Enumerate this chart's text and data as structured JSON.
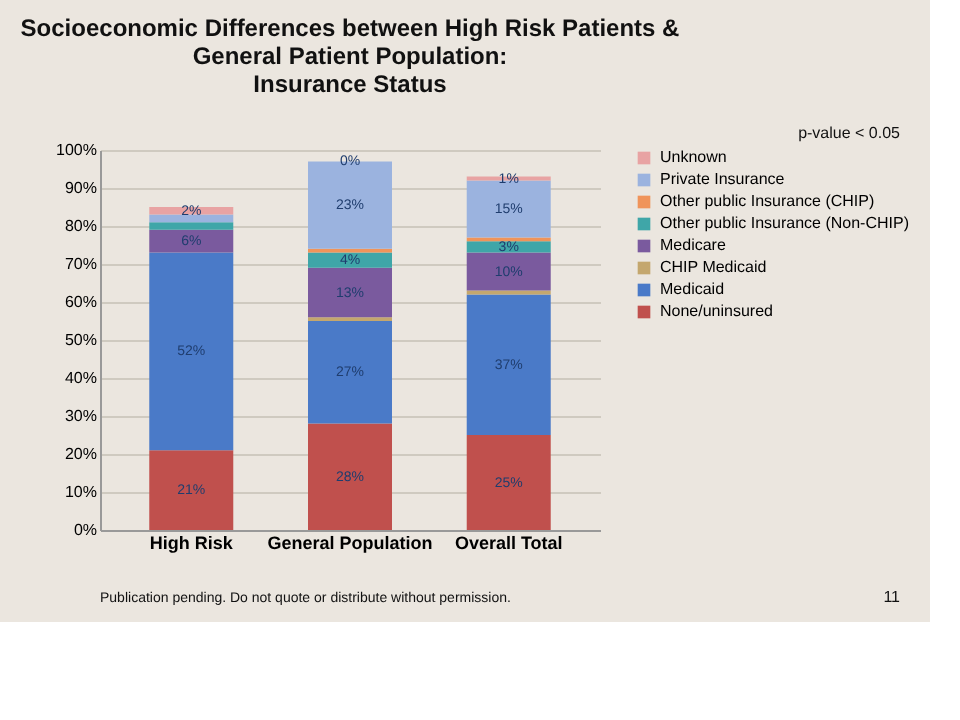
{
  "chart_data": {
    "type": "bar",
    "stacked": true,
    "title": [
      "Socioeconomic Differences between High Risk Patients &",
      "General Patient Population:",
      "Insurance Status"
    ],
    "annotations": [
      "p-value < 0.05",
      "Publication pending. Do not quote or distribute without permission.",
      "11"
    ],
    "categories": [
      "High Risk",
      "General Population",
      "Overall Total"
    ],
    "ylim": [
      0,
      100
    ],
    "yticks": [
      {
        "value": 0,
        "label": "0%"
      },
      {
        "value": 10,
        "label": "10%"
      },
      {
        "value": 20,
        "label": "20%"
      },
      {
        "value": 30,
        "label": "30%"
      },
      {
        "value": 40,
        "label": "40%"
      },
      {
        "value": 50,
        "label": "50%"
      },
      {
        "value": 60,
        "label": "60%"
      },
      {
        "value": 70,
        "label": "70%"
      },
      {
        "value": 80,
        "label": "80%"
      },
      {
        "value": 90,
        "label": "90%"
      },
      {
        "value": 100,
        "label": "100%"
      }
    ],
    "grid": "y",
    "legend": "right",
    "series": [
      {
        "name": "None/uninsured",
        "color": "#c0504d",
        "values": [
          21,
          28,
          25
        ],
        "value_labels": [
          "21%",
          "28%",
          "25%"
        ]
      },
      {
        "name": "Medicaid",
        "color": "#4a7ac8",
        "values": [
          52,
          27,
          37
        ],
        "value_labels": [
          "52%",
          "27%",
          "37%"
        ]
      },
      {
        "name": "CHIP Medicaid",
        "color": "#c4a76e",
        "values": [
          0,
          1,
          1
        ],
        "value_labels": [
          null,
          null,
          null
        ]
      },
      {
        "name": "Medicare",
        "color": "#7a5a9e",
        "values": [
          6,
          13,
          10
        ],
        "value_labels": [
          "6%",
          "13%",
          "10%"
        ]
      },
      {
        "name": "Other public Insurance (Non-CHIP)",
        "color": "#3fa6a8",
        "values": [
          2,
          4,
          3
        ],
        "value_labels": [
          null,
          "4%",
          "3%"
        ]
      },
      {
        "name": "Other public Insurance (CHIP)",
        "color": "#f0945a",
        "values": [
          0,
          1,
          1
        ],
        "value_labels": [
          null,
          null,
          null
        ]
      },
      {
        "name": "Private Insurance",
        "color": "#9bb3df",
        "values": [
          2,
          23,
          15
        ],
        "value_labels": [
          null,
          "23%",
          "15%"
        ]
      },
      {
        "name": "Unknown",
        "color": "#e8a3a3",
        "values": [
          2,
          0,
          1
        ],
        "value_labels": [
          "2%",
          "0%",
          "1%"
        ]
      }
    ]
  }
}
